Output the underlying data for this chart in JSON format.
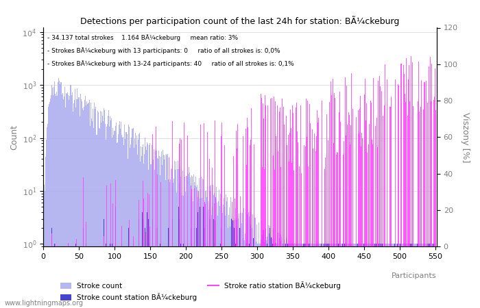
{
  "title": "Detections per participation count of the last 24h for station: BÃ¼ckeburg",
  "info_lines": [
    "34.137 total strokes    1.164 BÃ¼ckeburg     mean ratio: 3%",
    "Strokes BÃ¼ckeburg with 13 participants: 0     ratio of all strokes is: 0,0%",
    "Strokes BÃ¼ckeburg with 13-24 participants: 40     ratio of all strokes is: 0,1%"
  ],
  "xlabel": "Participants",
  "ylabel_left": "Count",
  "ylabel_right": "Viszony [%]",
  "xlim": [
    0,
    550
  ],
  "ylim_right": [
    0,
    120
  ],
  "right_yticks": [
    0,
    20,
    40,
    60,
    80,
    100,
    120
  ],
  "bar_color_total": "#aaaaee",
  "bar_color_station": "#4444cc",
  "line_color_ratio": "#ff44ff",
  "watermark": "www.lightningmaps.org",
  "legend_entries": [
    "Stroke count",
    "Stroke count station BÃ¼ckeburg",
    "Stroke ratio station BÃ¼ckeburg"
  ]
}
